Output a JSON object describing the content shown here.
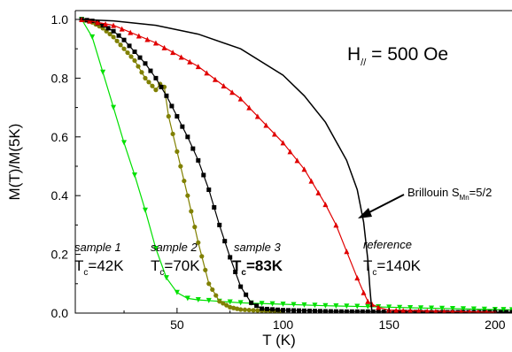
{
  "chart_data": {
    "type": "line",
    "title": "",
    "xlabel": "T (K)",
    "ylabel": "M(T)/M(5K)",
    "xlim": [
      2,
      208
    ],
    "ylim": [
      0.0,
      1.03
    ],
    "x_ticks": [
      "50",
      "100",
      "150",
      "200"
    ],
    "y_ticks": [
      "0.0",
      "0.2",
      "0.4",
      "0.6",
      "0.8",
      "1.0"
    ],
    "grid": false,
    "annotations": {
      "field": {
        "main": "H",
        "sub": "//",
        "rest": " = 500 Oe"
      },
      "brillouin": {
        "main": "Brillouin S",
        "sub": "Mn",
        "rest": "=5/2"
      },
      "sample1": {
        "name": "sample 1",
        "tc_main": "T",
        "tc_sub": "c",
        "tc_rest": "=42K"
      },
      "sample2": {
        "name": "sample 2",
        "tc_main": "T",
        "tc_sub": "c",
        "tc_rest": "=70K"
      },
      "sample3": {
        "name": "sample 3",
        "tc_main": "T",
        "tc_sub": "c",
        "tc_rest": "=83K"
      },
      "reference": {
        "name": "reference",
        "tc_main": "T",
        "tc_sub": "c",
        "tc_rest": "=140K"
      }
    },
    "series": [
      {
        "color": "#00e000",
        "marker": "triangle-down",
        "x": [
          5,
          10,
          15,
          20,
          25,
          30,
          35,
          40,
          45,
          50,
          55,
          60,
          70,
          80,
          100,
          120,
          140,
          160,
          180,
          200,
          208
        ],
        "y": [
          1.0,
          0.94,
          0.82,
          0.7,
          0.58,
          0.47,
          0.35,
          0.22,
          0.12,
          0.07,
          0.05,
          0.045,
          0.04,
          0.035,
          0.03,
          0.025,
          0.022,
          0.018,
          0.015,
          0.012,
          0.011
        ]
      },
      {
        "color": "#808000",
        "marker": "circle",
        "x": [
          5,
          10,
          15,
          20,
          25,
          30,
          35,
          40,
          42,
          44,
          46,
          50,
          55,
          60,
          65,
          70,
          75,
          80,
          90,
          100
        ],
        "y": [
          1.0,
          0.99,
          0.97,
          0.94,
          0.9,
          0.86,
          0.8,
          0.76,
          0.78,
          0.77,
          0.67,
          0.55,
          0.4,
          0.24,
          0.1,
          0.04,
          0.02,
          0.012,
          0.008,
          0.006
        ]
      },
      {
        "color": "#000000",
        "marker": "square",
        "x": [
          5,
          10,
          15,
          20,
          25,
          30,
          35,
          40,
          45,
          50,
          55,
          60,
          65,
          70,
          75,
          80,
          85,
          90,
          100,
          110,
          120,
          130,
          140,
          150,
          160,
          170,
          180,
          190,
          200,
          208
        ],
        "y": [
          1.0,
          0.995,
          0.98,
          0.96,
          0.93,
          0.89,
          0.85,
          0.8,
          0.74,
          0.67,
          0.6,
          0.52,
          0.42,
          0.3,
          0.19,
          0.09,
          0.035,
          0.015,
          0.01,
          0.008,
          0.006,
          0.005,
          0.005,
          0.004,
          0.004,
          0.003,
          0.003,
          0.003,
          0.003,
          0.003
        ]
      },
      {
        "color": "#e00000",
        "marker": "triangle-up",
        "x": [
          5,
          20,
          40,
          60,
          80,
          100,
          110,
          120,
          125,
          130,
          135,
          138,
          140,
          142,
          145,
          150,
          160,
          180,
          200
        ],
        "y": [
          1.0,
          0.98,
          0.92,
          0.84,
          0.73,
          0.58,
          0.49,
          0.37,
          0.3,
          0.21,
          0.12,
          0.07,
          0.04,
          0.03,
          0.02,
          0.01,
          0.008,
          0.005,
          0.003
        ]
      },
      {
        "color": "#000000",
        "marker": "none",
        "x": [
          5,
          20,
          40,
          60,
          80,
          100,
          110,
          120,
          130,
          135,
          138,
          140,
          141,
          142
        ],
        "y": [
          1.0,
          0.995,
          0.98,
          0.95,
          0.9,
          0.81,
          0.74,
          0.65,
          0.52,
          0.42,
          0.31,
          0.18,
          0.08,
          0.0
        ]
      }
    ]
  }
}
